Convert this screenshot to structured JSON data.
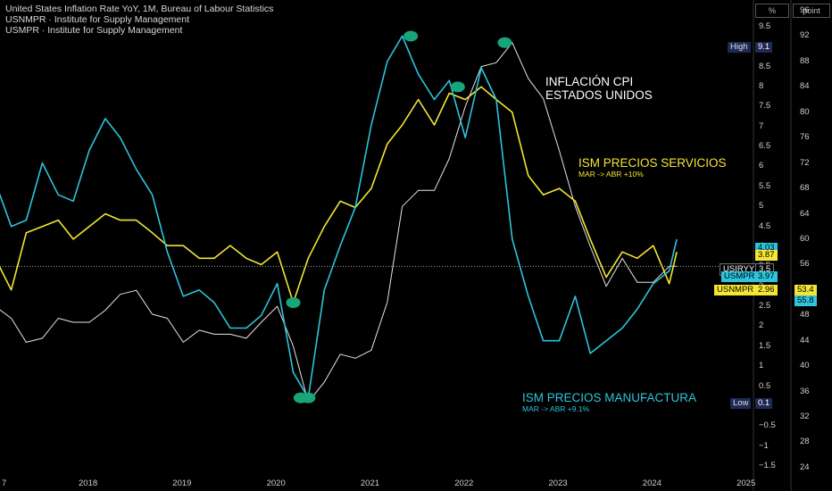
{
  "legend": [
    "United States Inflation Rate YoY, 1M, Bureau of Labour Statistics",
    "USNMPR · Institute for Supply Management",
    "USMPR · Institute for Supply Management"
  ],
  "header": {
    "left_unit": "%",
    "right_unit": "point"
  },
  "annotations": {
    "cpi": [
      "INFLACIÓN CPI",
      "ESTADOS UNIDOS"
    ],
    "services_title": "ISM PRECIOS SERVICIOS",
    "services_sub": "MAR -> ABR +10%",
    "manufacturing_title": "ISM PRECIOS MANUFACTURA",
    "manufacturing_sub": "MAR -> ABR +9.1%"
  },
  "colors": {
    "cpi": "#e6e6e6",
    "services": "#f5e633",
    "manufacturing": "#2ec4dc",
    "marker": "#18a57a",
    "badge_dark": "#1e2a55"
  },
  "badges": {
    "high_label": "High",
    "high_value": "9.1",
    "low_label": "Low",
    "low_value": "0.1",
    "usiryy_label": "USIRYY",
    "usiryy_value": "3.5",
    "usmpr_label": "USMPR",
    "usmpr_value": "3.97",
    "usmpr_right": "55.8",
    "usnmpr_label": "USNMPR",
    "usnmpr_value": "2.96",
    "usnmpr_right": "53.4",
    "cyan_tag": "4.03",
    "yellow_tag": "3.87"
  },
  "chart_data": {
    "type": "line",
    "x_axis_ticks": [
      "7",
      "2018",
      "2019",
      "2020",
      "2021",
      "2022",
      "2023",
      "2024",
      "2025"
    ],
    "left_axis": {
      "ylim": [
        -1.7,
        9.9
      ],
      "ticks": [
        "9.5",
        "9",
        "8.5",
        "8",
        "7.5",
        "7",
        "6.5",
        "6",
        "5.5",
        "5",
        "4.5",
        "4",
        "3.5",
        "3",
        "2.5",
        "2",
        "1.5",
        "1",
        "0.5",
        "0",
        "−0.5",
        "−1",
        "−1.5"
      ]
    },
    "right_axis": {
      "ylim": [
        23,
        96
      ],
      "ticks": [
        "96",
        "92",
        "88",
        "84",
        "80",
        "76",
        "72",
        "68",
        "64",
        "60",
        "56",
        "52",
        "48",
        "44",
        "40",
        "36",
        "32",
        "28",
        "24"
      ]
    },
    "series": [
      {
        "name": "United States Inflation Rate YoY",
        "axis": "left",
        "x": [
          2017.0,
          2017.17,
          2017.33,
          2017.5,
          2017.67,
          2017.83,
          2018.0,
          2018.17,
          2018.33,
          2018.5,
          2018.67,
          2018.83,
          2019.0,
          2019.17,
          2019.33,
          2019.5,
          2019.67,
          2019.83,
          2020.0,
          2020.17,
          2020.33,
          2020.5,
          2020.67,
          2020.83,
          2021.0,
          2021.17,
          2021.33,
          2021.5,
          2021.67,
          2021.83,
          2022.0,
          2022.17,
          2022.33,
          2022.5,
          2022.67,
          2022.83,
          2023.0,
          2023.17,
          2023.33,
          2023.5,
          2023.67,
          2023.83,
          2024.0,
          2024.17,
          2024.25
        ],
        "values": [
          2.5,
          2.2,
          1.6,
          1.7,
          2.2,
          2.1,
          2.1,
          2.4,
          2.8,
          2.9,
          2.3,
          2.2,
          1.6,
          1.9,
          1.8,
          1.8,
          1.7,
          2.1,
          2.5,
          1.5,
          0.1,
          0.6,
          1.3,
          1.2,
          1.4,
          2.6,
          5.0,
          5.4,
          5.4,
          6.2,
          7.5,
          8.5,
          8.6,
          9.1,
          8.2,
          7.7,
          6.4,
          5.0,
          4.0,
          3.0,
          3.7,
          3.1,
          3.1,
          3.5,
          3.5
        ]
      },
      {
        "name": "USNMPR",
        "axis": "right",
        "x": [
          2017.0,
          2017.17,
          2017.33,
          2017.5,
          2017.67,
          2017.83,
          2018.0,
          2018.17,
          2018.33,
          2018.5,
          2018.67,
          2018.83,
          2019.0,
          2019.17,
          2019.33,
          2019.5,
          2019.67,
          2019.83,
          2020.0,
          2020.17,
          2020.33,
          2020.5,
          2020.67,
          2020.83,
          2021.0,
          2021.17,
          2021.33,
          2021.5,
          2021.67,
          2021.83,
          2022.0,
          2022.17,
          2022.33,
          2022.5,
          2022.67,
          2022.83,
          2023.0,
          2023.17,
          2023.33,
          2023.5,
          2023.67,
          2023.83,
          2024.0,
          2024.17,
          2024.25
        ],
        "values": [
          57,
          52,
          61,
          62,
          63,
          60,
          62,
          64,
          63,
          63,
          61,
          59,
          59,
          57,
          57,
          59,
          57,
          56,
          58,
          50,
          57,
          62,
          66,
          65,
          68,
          75,
          78,
          82,
          78,
          83,
          82,
          84,
          82,
          80,
          70,
          67,
          68,
          66,
          60,
          54,
          58,
          57,
          59,
          53,
          58
        ]
      },
      {
        "name": "USMPR",
        "axis": "right",
        "x": [
          2017.0,
          2017.17,
          2017.33,
          2017.5,
          2017.67,
          2017.83,
          2018.0,
          2018.17,
          2018.33,
          2018.5,
          2018.67,
          2018.83,
          2019.0,
          2019.17,
          2019.33,
          2019.5,
          2019.67,
          2019.83,
          2020.0,
          2020.17,
          2020.33,
          2020.5,
          2020.67,
          2020.83,
          2021.0,
          2021.17,
          2021.33,
          2021.5,
          2021.67,
          2021.83,
          2022.0,
          2022.17,
          2022.33,
          2022.5,
          2022.67,
          2022.83,
          2023.0,
          2023.17,
          2023.33,
          2023.5,
          2023.67,
          2023.83,
          2024.0,
          2024.17,
          2024.25
        ],
        "values": [
          69,
          62,
          63,
          72,
          67,
          66,
          74,
          79,
          76,
          71,
          67,
          58,
          51,
          52,
          50,
          46,
          46,
          48,
          53,
          39,
          35,
          52,
          59,
          65,
          78,
          88,
          92,
          86,
          82,
          85,
          76,
          87,
          82,
          60,
          51,
          44,
          44,
          51,
          42,
          44,
          46,
          49,
          53,
          55,
          60
        ]
      }
    ],
    "peak_markers": [
      {
        "series": "USMPR",
        "x": 2021.42,
        "value": 92
      },
      {
        "series": "USMPR",
        "x": 2020.25,
        "value": 35
      },
      {
        "series": "USMPR",
        "x": 2020.33,
        "value": 35
      },
      {
        "series": "USNMPR",
        "x": 2020.17,
        "value": 50
      },
      {
        "series": "USNMPR",
        "x": 2021.92,
        "value": 84
      },
      {
        "series": "United States Inflation Rate YoY",
        "x": 2022.42,
        "value": 9.1
      }
    ],
    "reference_line": {
      "axis": "left",
      "value": 3.5
    },
    "grid": false
  }
}
